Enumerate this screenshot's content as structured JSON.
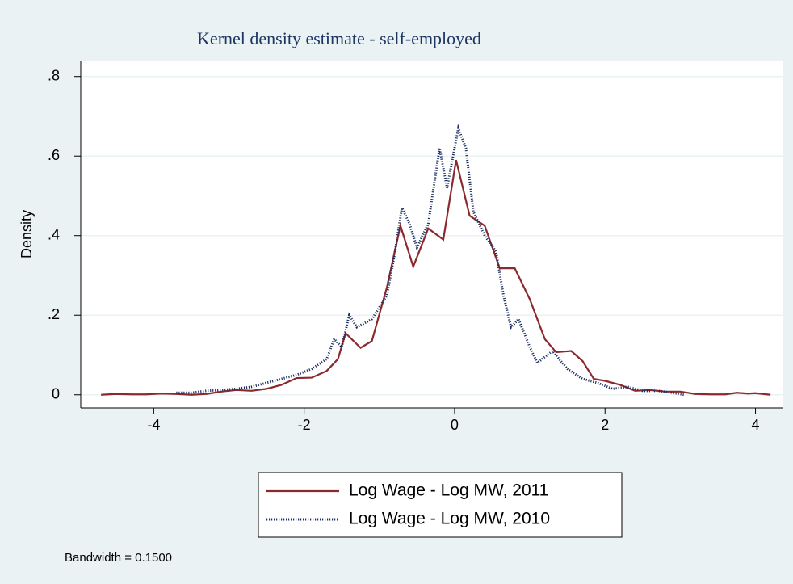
{
  "chart_data": {
    "type": "line",
    "title": "Kernel density estimate - self-employed",
    "y_label": "Density",
    "note": "Bandwidth = 0.1500",
    "xlim": [
      -4.97,
      4.37
    ],
    "ylim": [
      -0.033,
      0.84
    ],
    "xticks": [
      -4,
      -2,
      0,
      2,
      4
    ],
    "yticks": [
      0,
      {
        "value": 0.2,
        "label": ".2"
      },
      {
        "value": 0.4,
        "label": ".4"
      },
      {
        "value": 0.6,
        "label": ".6"
      },
      {
        "value": 0.8,
        "label": ".8"
      }
    ],
    "grid": true,
    "legend": "bottom",
    "series": [
      {
        "name": "Log Wage - Log MW, 2011",
        "color": "#8b2a2e",
        "style": "solid",
        "x": [
          -4.7,
          -4.5,
          -4.3,
          -4.1,
          -3.9,
          -3.7,
          -3.5,
          -3.3,
          -3.1,
          -2.9,
          -2.7,
          -2.5,
          -2.3,
          -2.1,
          -1.9,
          -1.7,
          -1.55,
          -1.45,
          -1.25,
          -1.1,
          -0.9,
          -0.72,
          -0.55,
          -0.35,
          -0.15,
          0.02,
          0.2,
          0.4,
          0.6,
          0.8,
          1.0,
          1.2,
          1.35,
          1.55,
          1.7,
          1.85,
          2.0,
          2.2,
          2.4,
          2.6,
          2.8,
          3.0,
          3.2,
          3.4,
          3.6,
          3.75,
          3.9,
          4.0,
          4.2
        ],
        "values": [
          0.0,
          0.002,
          0.001,
          0.001,
          0.003,
          0.002,
          0.0,
          0.002,
          0.008,
          0.012,
          0.01,
          0.015,
          0.025,
          0.042,
          0.043,
          0.06,
          0.09,
          0.155,
          0.118,
          0.135,
          0.27,
          0.425,
          0.322,
          0.418,
          0.39,
          0.59,
          0.45,
          0.425,
          0.318,
          0.318,
          0.24,
          0.14,
          0.107,
          0.11,
          0.085,
          0.04,
          0.035,
          0.025,
          0.01,
          0.012,
          0.008,
          0.008,
          0.002,
          0.001,
          0.001,
          0.005,
          0.003,
          0.004,
          0.0
        ]
      },
      {
        "name": "Log Wage - Log MW, 2010",
        "color": "#1c2f62",
        "style": "dotted",
        "x": [
          -3.7,
          -3.5,
          -3.3,
          -3.1,
          -2.9,
          -2.7,
          -2.5,
          -2.3,
          -2.1,
          -1.9,
          -1.7,
          -1.6,
          -1.5,
          -1.4,
          -1.3,
          -1.1,
          -0.9,
          -0.8,
          -0.7,
          -0.6,
          -0.5,
          -0.35,
          -0.2,
          -0.1,
          0.05,
          0.15,
          0.25,
          0.4,
          0.55,
          0.65,
          0.75,
          0.85,
          1.0,
          1.1,
          1.3,
          1.5,
          1.7,
          1.9,
          2.1,
          2.3,
          2.5,
          2.7,
          2.9,
          3.05
        ],
        "values": [
          0.005,
          0.005,
          0.01,
          0.012,
          0.015,
          0.02,
          0.03,
          0.04,
          0.05,
          0.065,
          0.09,
          0.14,
          0.12,
          0.2,
          0.17,
          0.19,
          0.25,
          0.35,
          0.47,
          0.43,
          0.37,
          0.43,
          0.62,
          0.52,
          0.67,
          0.62,
          0.46,
          0.4,
          0.36,
          0.25,
          0.17,
          0.19,
          0.12,
          0.08,
          0.11,
          0.065,
          0.04,
          0.03,
          0.015,
          0.02,
          0.01,
          0.01,
          0.005,
          0.0
        ]
      }
    ]
  }
}
